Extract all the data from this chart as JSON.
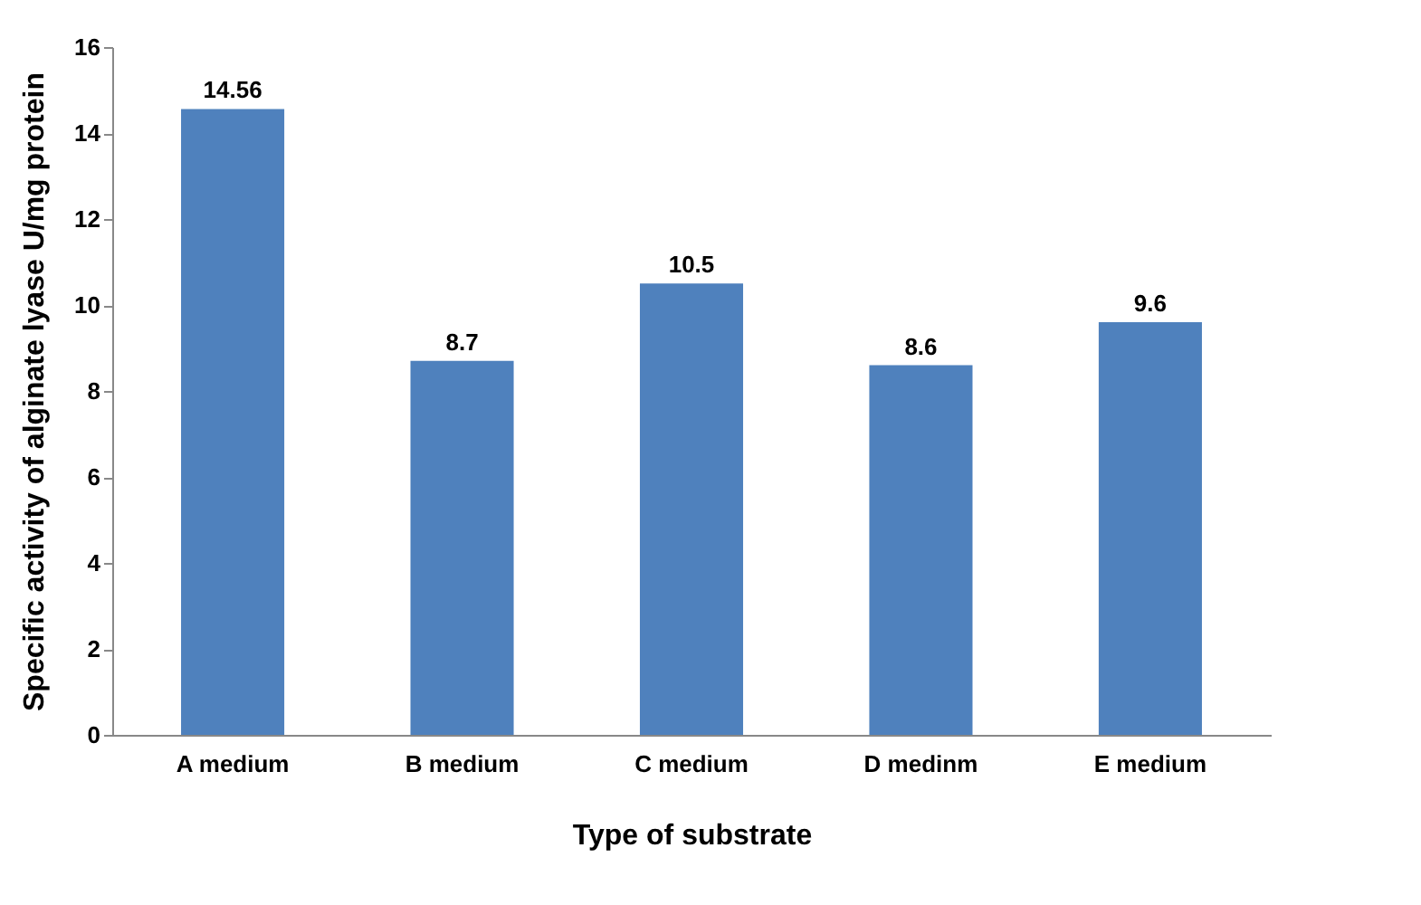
{
  "chart_data": {
    "type": "bar",
    "xlabel": "Type of substrate",
    "ylabel": "Specific activity of alginate lyase U/mg protein",
    "categories": [
      "A medium",
      "B medium",
      "C medium",
      "D medinm",
      "E medium"
    ],
    "values": [
      14.56,
      8.7,
      10.5,
      8.6,
      9.6
    ],
    "color": "#4f81bd",
    "ylim": [
      0,
      16
    ],
    "yticks": [
      0,
      2,
      4,
      6,
      8,
      10,
      12,
      14,
      16
    ],
    "grid": false,
    "data_labels": true
  }
}
